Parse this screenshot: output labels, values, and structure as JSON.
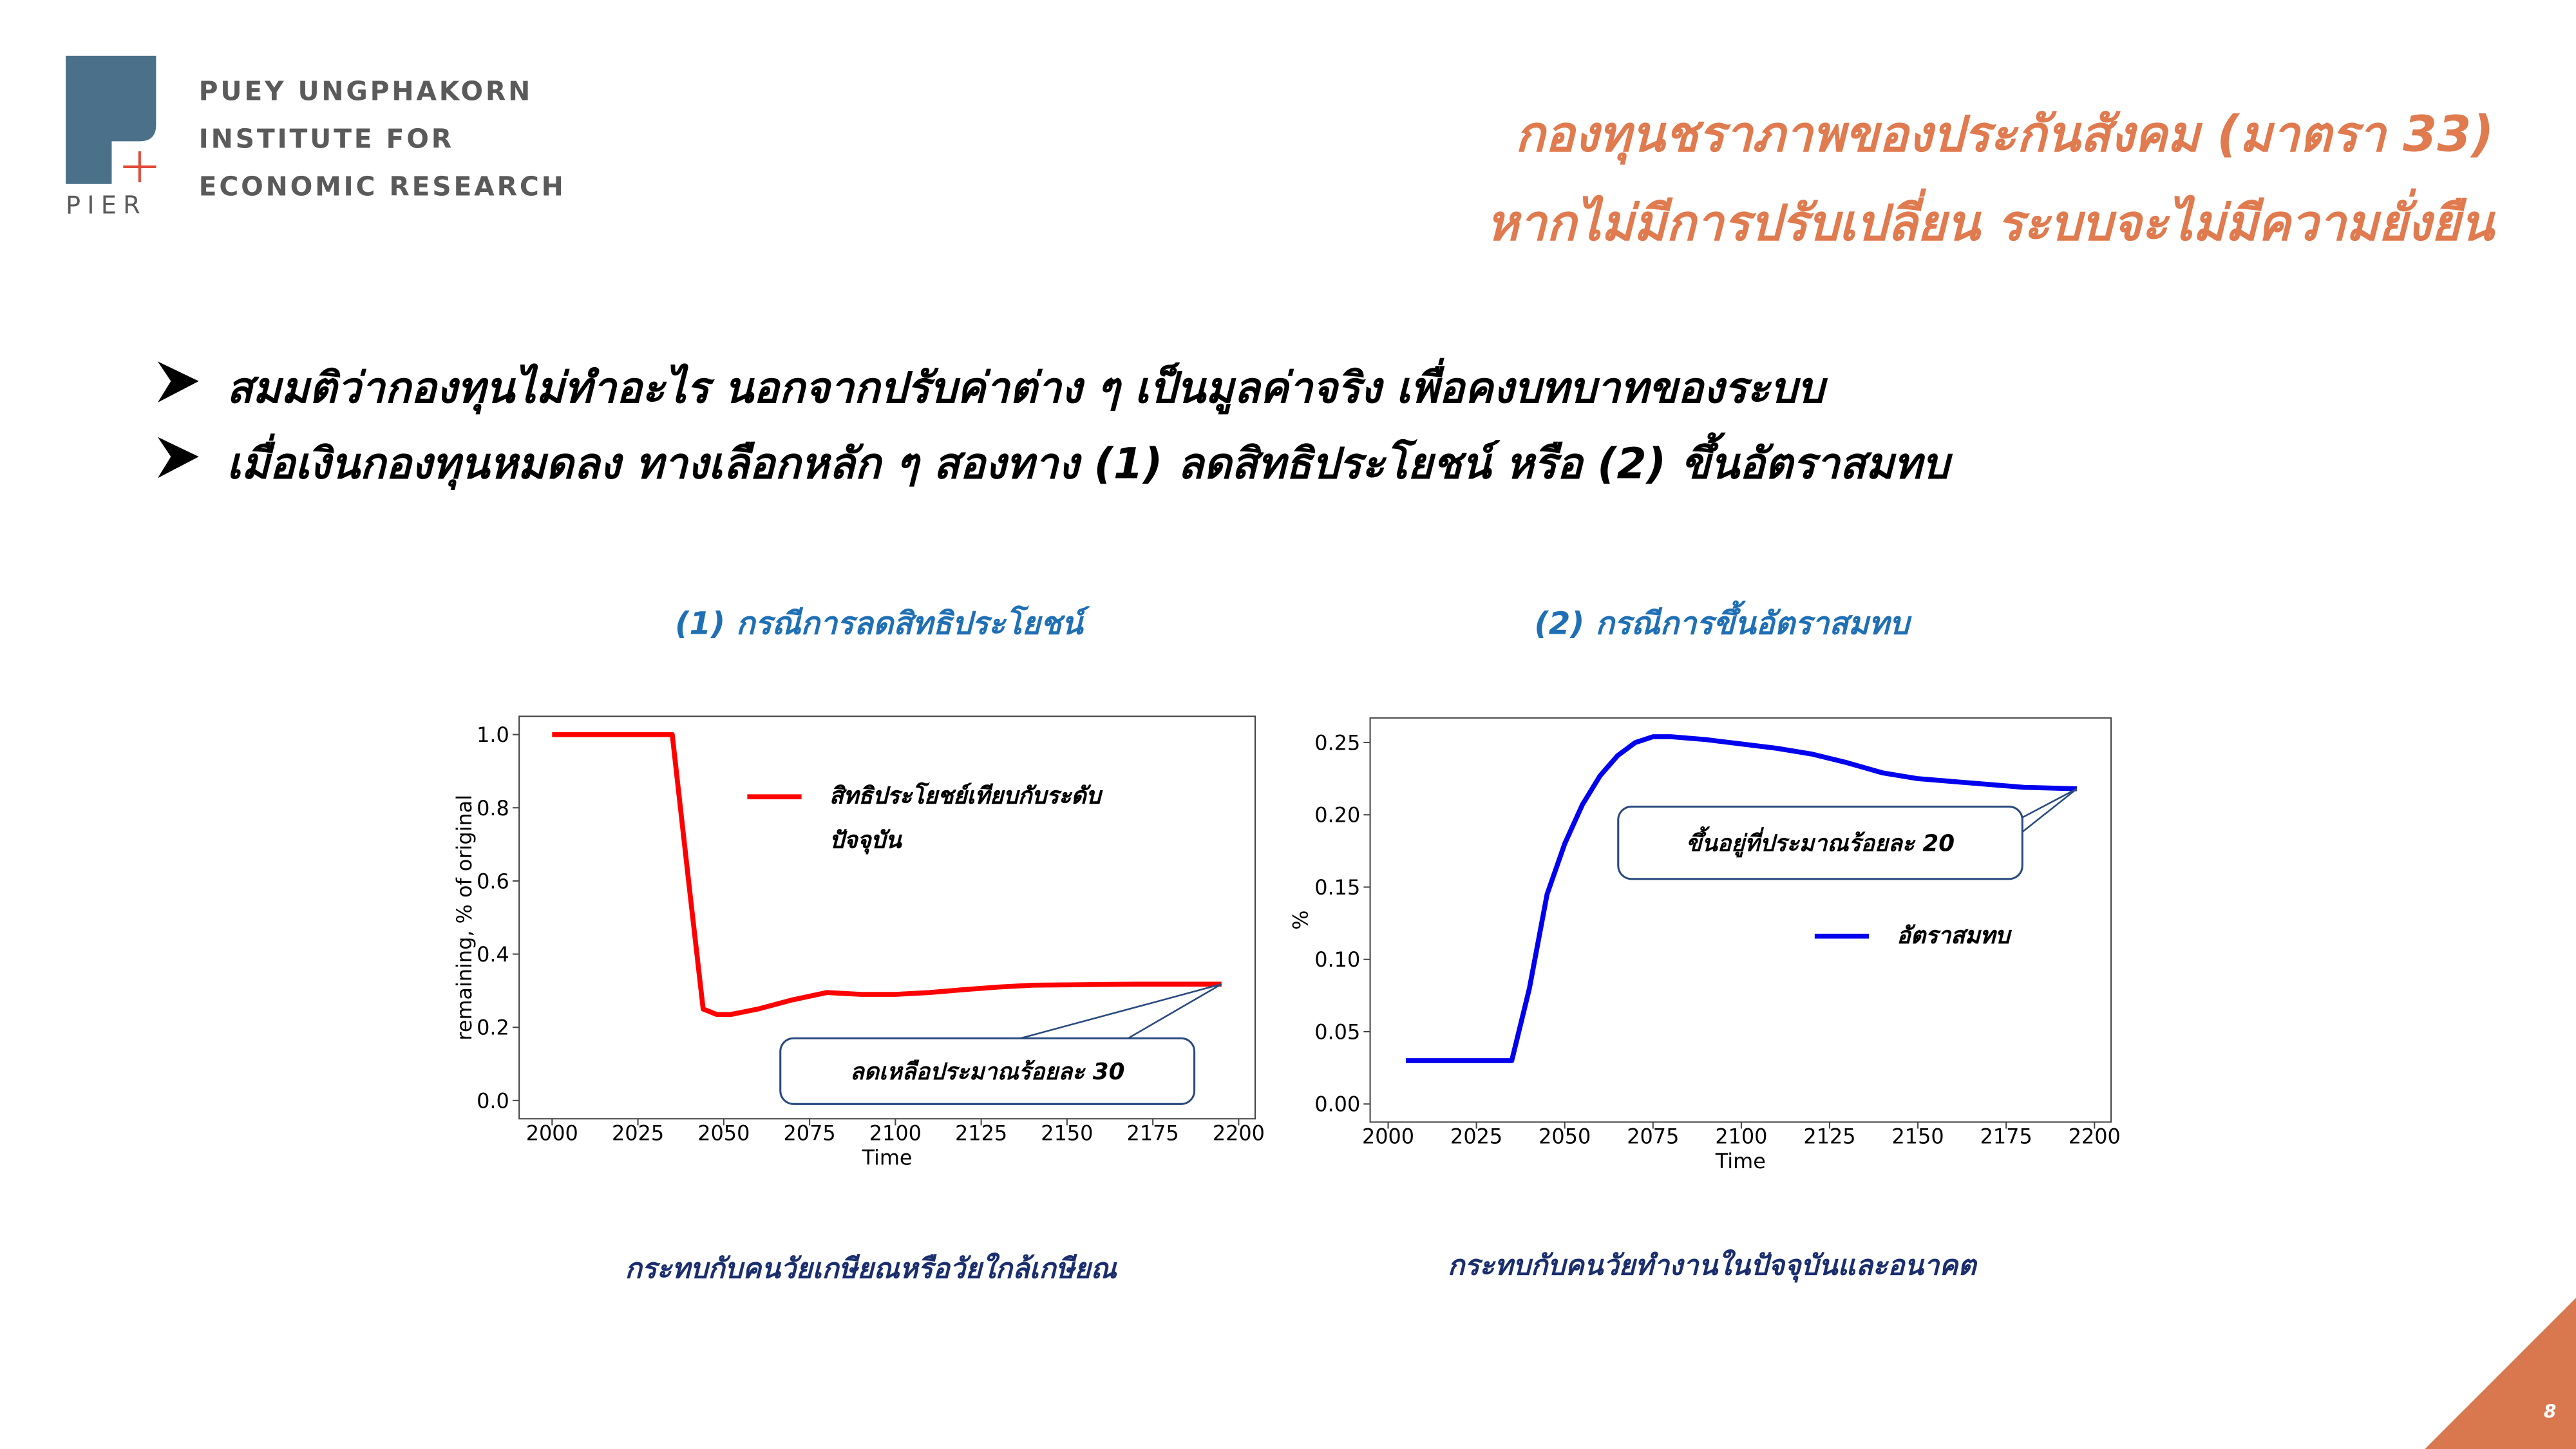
{
  "header": {
    "logo_lines": [
      "PUEY UNGPHAKORN",
      "INSTITUTE FOR",
      "ECONOMIC RESEARCH"
    ],
    "logo_mark": "PIER",
    "title_lines": [
      "กองทุนชราภาพของประกันสังคม (มาตรา 33)",
      "หากไม่มีการปรับเปลี่ยน ระบบจะไม่มีความยั่งยืน"
    ]
  },
  "bullets": [
    "สมมติว่ากองทุนไม่ทำอะไร นอกจากปรับค่าต่าง ๆ เป็นมูลค่าจริง เพื่อคงบทบาทของระบบ",
    "เมื่อเงินกองทุนหมดลง  ทางเลือกหลัก ๆ สองทาง (1) ลดสิทธิประโยชน์ หรือ (2) ขึ้นอัตราสมทบ"
  ],
  "page_number": "8",
  "chart_data": [
    {
      "type": "line",
      "title": "(1) กรณีการลดสิทธิประโยชน์",
      "caption": "กระทบกับคนวัยเกษียณหรือวัยใกล้เกษียณ",
      "xlabel": "Time",
      "ylabel": "remaining, % of original",
      "x": [
        2000,
        2035,
        2040,
        2044,
        2048,
        2052,
        2060,
        2070,
        2080,
        2090,
        2100,
        2110,
        2120,
        2130,
        2140,
        2150,
        2160,
        2170,
        2180,
        2195
      ],
      "series": [
        {
          "name": "สิทธิประโยชย์เทียบกับระดับปัจจุบัน",
          "color": "#ff0000",
          "values": [
            1.0,
            1.0,
            0.58,
            0.25,
            0.235,
            0.235,
            0.25,
            0.275,
            0.295,
            0.29,
            0.29,
            0.295,
            0.303,
            0.31,
            0.315,
            0.316,
            0.317,
            0.318,
            0.318,
            0.318
          ]
        }
      ],
      "xlim": [
        1990.4,
        2204.8
      ],
      "xticks": [
        2000,
        2025,
        2050,
        2075,
        2100,
        2125,
        2150,
        2175,
        2200
      ],
      "ylim": [
        -0.05,
        1.05
      ],
      "yticks": [
        {
          "value": 0,
          "label": "0.0"
        },
        0.2,
        0.4,
        0.6,
        0.8,
        {
          "value": 1,
          "label": "1.0"
        }
      ],
      "legend_loc": "upper center",
      "annotation": "ลดเหลือประมาณร้อยละ 30"
    },
    {
      "type": "line",
      "title": "(2) กรณีการขึ้นอัตราสมทบ",
      "caption": "กระทบกับคนวัยทำงานในปัจจุบันและอนาคต",
      "xlabel": "Time",
      "ylabel": "%",
      "x": [
        2005,
        2035,
        2040,
        2045,
        2050,
        2055,
        2060,
        2065,
        2070,
        2075,
        2080,
        2090,
        2100,
        2110,
        2120,
        2130,
        2140,
        2150,
        2160,
        2170,
        2180,
        2195
      ],
      "series": [
        {
          "name": "อัตราสมทบ",
          "color": "#0000ee",
          "values": [
            0.03,
            0.03,
            0.08,
            0.145,
            0.18,
            0.207,
            0.227,
            0.241,
            0.25,
            0.254,
            0.254,
            0.252,
            0.249,
            0.246,
            0.242,
            0.236,
            0.229,
            0.225,
            0.223,
            0.221,
            0.219,
            0.218
          ]
        }
      ],
      "xlim": [
        1994.9,
        2204.7
      ],
      "xticks": [
        2000,
        2025,
        2050,
        2075,
        2100,
        2125,
        2150,
        2175,
        2200
      ],
      "ylim": [
        -0.0125,
        0.267
      ],
      "yticks": [
        {
          "value": 0,
          "label": "0.00"
        },
        0.05,
        {
          "value": 0.1,
          "label": "0.10"
        },
        0.15,
        {
          "value": 0.2,
          "label": "0.20"
        },
        0.25
      ],
      "legend_loc": "center right",
      "annotation": "ขึ้นอยู่ที่ประมาณร้อยละ 20"
    }
  ]
}
